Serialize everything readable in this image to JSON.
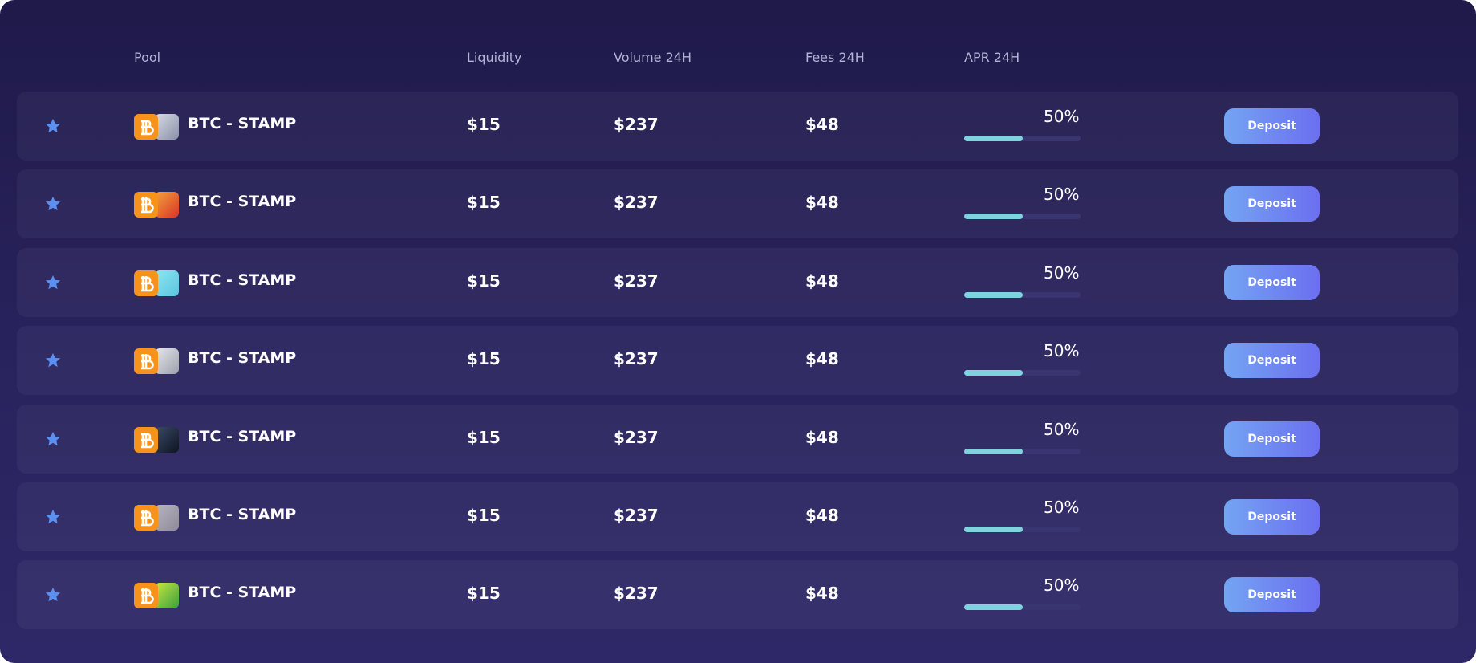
{
  "table": {
    "headers": [
      "Pool",
      "Liquidity",
      "Volume 24H",
      "Fees 24H",
      "APR 24H"
    ],
    "rows": [
      {
        "pool": "BTC - STAMP",
        "liquidity": "$15",
        "volume": "$237",
        "fees": "$48",
        "apr": {
          "value": 50,
          "label": "50%"
        },
        "action": "Deposit"
      },
      {
        "pool": "BTC - STAMP",
        "liquidity": "$15",
        "volume": "$237",
        "fees": "$48",
        "apr": {
          "value": 50,
          "label": "50%"
        },
        "action": "Deposit"
      },
      {
        "pool": "BTC - STAMP",
        "liquidity": "$15",
        "volume": "$237",
        "fees": "$48",
        "apr": {
          "value": 50,
          "label": "50%"
        },
        "action": "Deposit"
      },
      {
        "pool": "BTC - STAMP",
        "liquidity": "$15",
        "volume": "$237",
        "fees": "$48",
        "apr": {
          "value": 50,
          "label": "50%"
        },
        "action": "Deposit"
      },
      {
        "pool": "BTC - STAMP",
        "liquidity": "$15",
        "volume": "$237",
        "fees": "$48",
        "apr": {
          "value": 50,
          "label": "50%"
        },
        "action": "Deposit"
      },
      {
        "pool": "BTC - STAMP",
        "liquidity": "$15",
        "volume": "$237",
        "fees": "$48",
        "apr": {
          "value": 50,
          "label": "50%"
        },
        "action": "Deposit"
      },
      {
        "pool": "BTC - STAMP",
        "liquidity": "$15",
        "volume": "$237",
        "fees": "$48",
        "apr": {
          "value": 50,
          "label": "50%"
        },
        "action": "Deposit"
      }
    ]
  }
}
